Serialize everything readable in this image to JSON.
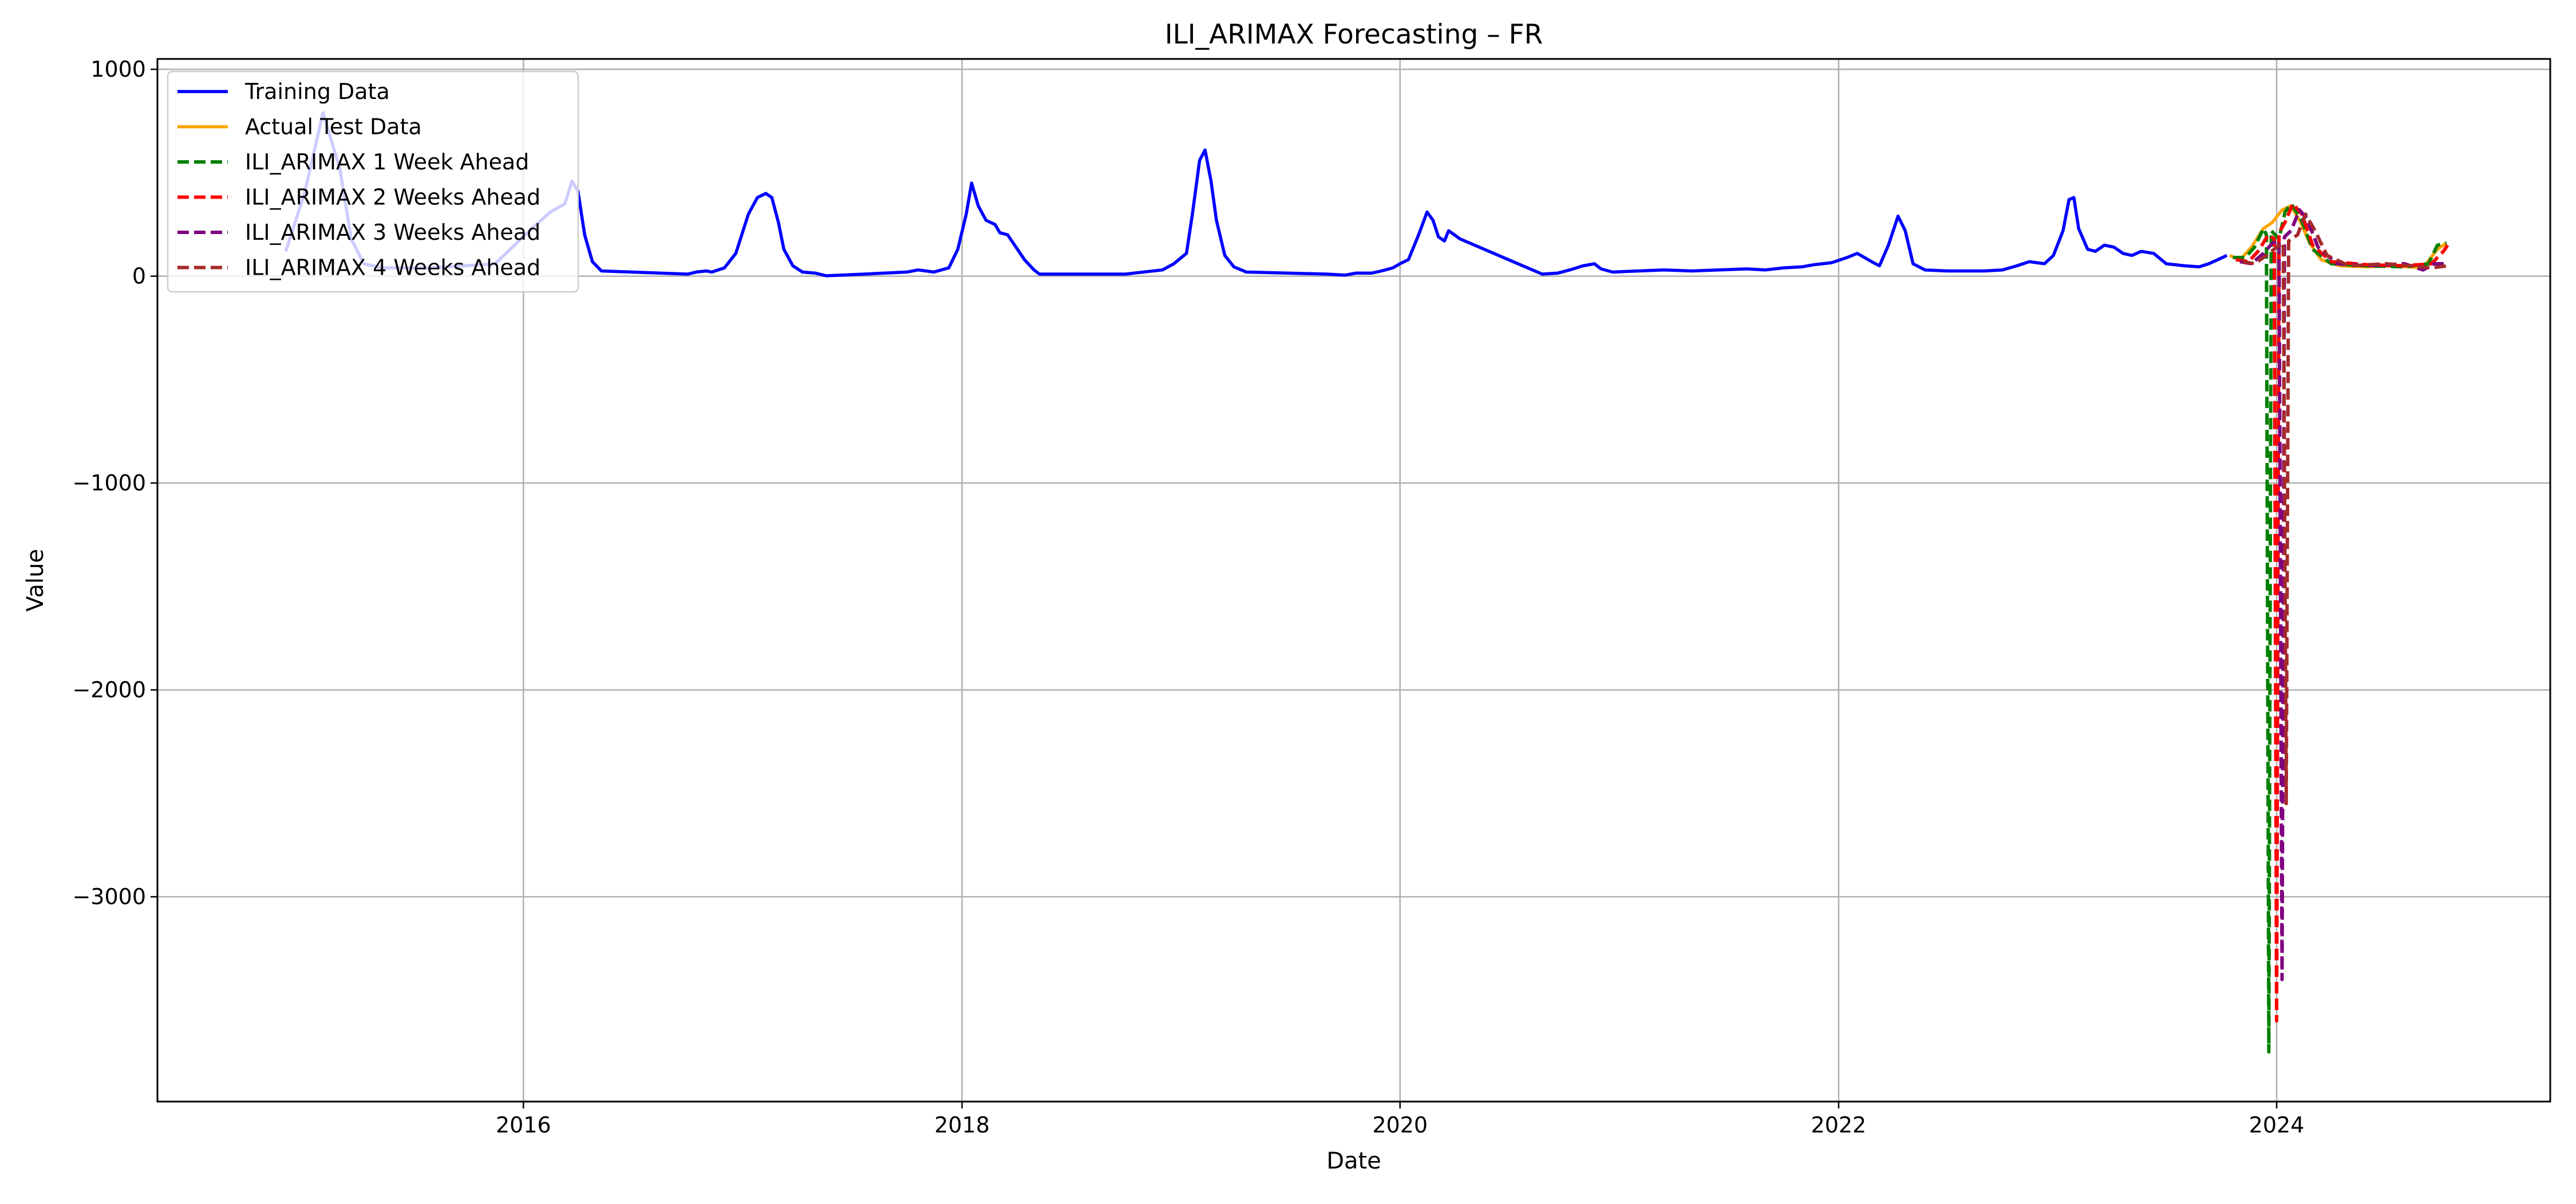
{
  "chart_data": {
    "type": "line",
    "title": "ILI_ARIMAX Forecasting – FR",
    "xlabel": "Date",
    "ylabel": "Value",
    "xlim": [
      "2014-05-01",
      "2025-04-01"
    ],
    "ylim": [
      -3990,
      1050
    ],
    "x_ticks": [
      {
        "value": "2016-01-01",
        "label": "2016"
      },
      {
        "value": "2018-01-01",
        "label": "2018"
      },
      {
        "value": "2020-01-01",
        "label": "2020"
      },
      {
        "value": "2022-01-01",
        "label": "2022"
      },
      {
        "value": "2024-01-01",
        "label": "2024"
      }
    ],
    "y_ticks": [
      {
        "value": 1000,
        "label": "1000"
      },
      {
        "value": 0,
        "label": "0"
      },
      {
        "value": -1000,
        "label": "−1000"
      },
      {
        "value": -2000,
        "label": "−2000"
      },
      {
        "value": -3000,
        "label": "−3000"
      }
    ],
    "grid": true,
    "legend_position": "top-left",
    "series": [
      {
        "name": "Training Data",
        "color": "#0000ff",
        "dash": "solid",
        "points": [
          [
            "2014-12-01",
            120
          ],
          [
            "2015-01-01",
            400
          ],
          [
            "2015-02-01",
            790
          ],
          [
            "2015-03-01",
            520
          ],
          [
            "2015-03-20",
            180
          ],
          [
            "2015-04-10",
            60
          ],
          [
            "2015-05-10",
            40
          ],
          [
            "2015-08-01",
            40
          ],
          [
            "2015-11-15",
            60
          ],
          [
            "2016-01-15",
            230
          ],
          [
            "2016-02-15",
            310
          ],
          [
            "2016-03-10",
            350
          ],
          [
            "2016-03-22",
            460
          ],
          [
            "2016-04-01",
            410
          ],
          [
            "2016-04-12",
            200
          ],
          [
            "2016-04-25",
            70
          ],
          [
            "2016-05-10",
            25
          ],
          [
            "2016-10-01",
            10
          ],
          [
            "2016-10-15",
            20
          ],
          [
            "2016-11-01",
            25
          ],
          [
            "2016-11-10",
            20
          ],
          [
            "2016-12-01",
            40
          ],
          [
            "2016-12-20",
            110
          ],
          [
            "2017-01-10",
            300
          ],
          [
            "2017-01-25",
            380
          ],
          [
            "2017-02-08",
            400
          ],
          [
            "2017-02-18",
            380
          ],
          [
            "2017-03-01",
            260
          ],
          [
            "2017-03-10",
            130
          ],
          [
            "2017-03-25",
            50
          ],
          [
            "2017-04-10",
            20
          ],
          [
            "2017-05-01",
            15
          ],
          [
            "2017-05-20",
            2
          ],
          [
            "2017-06-15",
            5
          ],
          [
            "2017-10-01",
            20
          ],
          [
            "2017-10-20",
            30
          ],
          [
            "2017-11-15",
            20
          ],
          [
            "2017-12-10",
            40
          ],
          [
            "2017-12-25",
            130
          ],
          [
            "2018-01-08",
            300
          ],
          [
            "2018-01-17",
            450
          ],
          [
            "2018-01-28",
            340
          ],
          [
            "2018-02-10",
            270
          ],
          [
            "2018-02-25",
            250
          ],
          [
            "2018-03-05",
            210
          ],
          [
            "2018-03-18",
            200
          ],
          [
            "2018-04-01",
            140
          ],
          [
            "2018-04-15",
            80
          ],
          [
            "2018-05-01",
            30
          ],
          [
            "2018-05-10",
            10
          ],
          [
            "2018-10-01",
            10
          ],
          [
            "2018-10-15",
            15
          ],
          [
            "2018-12-01",
            30
          ],
          [
            "2018-12-20",
            60
          ],
          [
            "2019-01-10",
            110
          ],
          [
            "2019-01-20",
            300
          ],
          [
            "2019-02-01",
            560
          ],
          [
            "2019-02-10",
            610
          ],
          [
            "2019-02-20",
            460
          ],
          [
            "2019-03-01",
            270
          ],
          [
            "2019-03-15",
            100
          ],
          [
            "2019-03-30",
            45
          ],
          [
            "2019-04-20",
            20
          ],
          [
            "2019-09-01",
            10
          ],
          [
            "2019-10-01",
            5
          ],
          [
            "2019-10-20",
            15
          ],
          [
            "2019-11-15",
            15
          ],
          [
            "2019-12-01",
            25
          ],
          [
            "2019-12-20",
            40
          ],
          [
            "2020-01-01",
            60
          ],
          [
            "2020-01-15",
            80
          ],
          [
            "2020-02-01",
            200
          ],
          [
            "2020-02-15",
            310
          ],
          [
            "2020-02-25",
            270
          ],
          [
            "2020-03-05",
            190
          ],
          [
            "2020-03-15",
            170
          ],
          [
            "2020-03-22",
            220
          ],
          [
            "2020-04-10",
            180
          ],
          [
            "2020-08-25",
            10
          ],
          [
            "2020-09-20",
            15
          ],
          [
            "2020-10-10",
            30
          ],
          [
            "2020-11-01",
            50
          ],
          [
            "2020-11-20",
            60
          ],
          [
            "2020-12-01",
            35
          ],
          [
            "2020-12-20",
            20
          ],
          [
            "2021-02-01",
            25
          ],
          [
            "2021-03-15",
            30
          ],
          [
            "2021-05-01",
            25
          ],
          [
            "2021-08-01",
            35
          ],
          [
            "2021-09-01",
            30
          ],
          [
            "2021-10-01",
            40
          ],
          [
            "2021-11-01",
            45
          ],
          [
            "2021-11-20",
            55
          ],
          [
            "2021-12-20",
            65
          ],
          [
            "2022-01-15",
            90
          ],
          [
            "2022-02-01",
            110
          ],
          [
            "2022-02-25",
            70
          ],
          [
            "2022-03-10",
            50
          ],
          [
            "2022-03-25",
            150
          ],
          [
            "2022-04-10",
            290
          ],
          [
            "2022-04-22",
            220
          ],
          [
            "2022-05-05",
            60
          ],
          [
            "2022-05-25",
            30
          ],
          [
            "2022-07-01",
            25
          ],
          [
            "2022-09-01",
            25
          ],
          [
            "2022-10-01",
            30
          ],
          [
            "2022-10-25",
            50
          ],
          [
            "2022-11-15",
            70
          ],
          [
            "2022-12-10",
            60
          ],
          [
            "2022-12-25",
            100
          ],
          [
            "2023-01-10",
            220
          ],
          [
            "2023-01-20",
            370
          ],
          [
            "2023-01-28",
            380
          ],
          [
            "2023-02-05",
            230
          ],
          [
            "2023-02-20",
            130
          ],
          [
            "2023-03-05",
            120
          ],
          [
            "2023-03-20",
            150
          ],
          [
            "2023-04-05",
            140
          ],
          [
            "2023-04-20",
            110
          ],
          [
            "2023-05-05",
            100
          ],
          [
            "2023-05-20",
            120
          ],
          [
            "2023-06-10",
            110
          ],
          [
            "2023-07-01",
            60
          ],
          [
            "2023-08-01",
            50
          ],
          [
            "2023-08-25",
            45
          ],
          [
            "2023-09-10",
            60
          ],
          [
            "2023-09-25",
            80
          ],
          [
            "2023-10-10",
            100
          ]
        ]
      },
      {
        "name": "Actual Test Data",
        "color": "#ffa500",
        "dash": "solid",
        "points": [
          [
            "2023-10-15",
            100
          ],
          [
            "2023-11-01",
            80
          ],
          [
            "2023-11-20",
            140
          ],
          [
            "2023-12-10",
            230
          ],
          [
            "2023-12-25",
            260
          ],
          [
            "2024-01-10",
            320
          ],
          [
            "2024-01-25",
            340
          ],
          [
            "2024-02-10",
            260
          ],
          [
            "2024-02-25",
            160
          ],
          [
            "2024-03-15",
            80
          ],
          [
            "2024-04-15",
            50
          ],
          [
            "2024-06-01",
            45
          ],
          [
            "2024-07-15",
            50
          ],
          [
            "2024-09-01",
            40
          ],
          [
            "2024-09-25",
            130
          ],
          [
            "2024-10-10",
            160
          ]
        ]
      },
      {
        "name": "ILI_ARIMAX 1 Week Ahead",
        "color": "#008000",
        "dash": "dashed",
        "points": [
          [
            "2023-10-20",
            90
          ],
          [
            "2023-11-10",
            90
          ],
          [
            "2023-11-25",
            140
          ],
          [
            "2023-12-10",
            230
          ],
          [
            "2023-12-15",
            200
          ],
          [
            "2023-12-19",
            -3750
          ],
          [
            "2023-12-23",
            220
          ],
          [
            "2024-01-05",
            180
          ],
          [
            "2024-01-15",
            310
          ],
          [
            "2024-01-25",
            350
          ],
          [
            "2024-02-10",
            280
          ],
          [
            "2024-03-01",
            130
          ],
          [
            "2024-04-01",
            60
          ],
          [
            "2024-06-01",
            50
          ],
          [
            "2024-08-01",
            45
          ],
          [
            "2024-09-10",
            60
          ],
          [
            "2024-09-25",
            150
          ],
          [
            "2024-10-10",
            160
          ]
        ]
      },
      {
        "name": "ILI_ARIMAX 2 Weeks Ahead",
        "color": "#ff0000",
        "dash": "dashed",
        "points": [
          [
            "2023-10-25",
            80
          ],
          [
            "2023-11-15",
            70
          ],
          [
            "2023-12-01",
            120
          ],
          [
            "2023-12-18",
            200
          ],
          [
            "2023-12-28",
            180
          ],
          [
            "2024-01-01",
            -3600
          ],
          [
            "2024-01-05",
            210
          ],
          [
            "2024-01-15",
            260
          ],
          [
            "2024-01-28",
            350
          ],
          [
            "2024-02-12",
            300
          ],
          [
            "2024-03-01",
            150
          ],
          [
            "2024-04-01",
            70
          ],
          [
            "2024-06-01",
            55
          ],
          [
            "2024-08-01",
            50
          ],
          [
            "2024-09-15",
            60
          ],
          [
            "2024-10-05",
            120
          ],
          [
            "2024-10-12",
            150
          ]
        ]
      },
      {
        "name": "ILI_ARIMAX 3 Weeks Ahead",
        "color": "#800080",
        "dash": "dashed",
        "points": [
          [
            "2023-11-01",
            70
          ],
          [
            "2023-11-20",
            60
          ],
          [
            "2023-12-10",
            110
          ],
          [
            "2023-12-25",
            160
          ],
          [
            "2024-01-05",
            170
          ],
          [
            "2024-01-10",
            -3400
          ],
          [
            "2024-01-14",
            190
          ],
          [
            "2024-01-25",
            220
          ],
          [
            "2024-02-08",
            320
          ],
          [
            "2024-02-20",
            280
          ],
          [
            "2024-03-10",
            140
          ],
          [
            "2024-04-10",
            60
          ],
          [
            "2024-06-01",
            50
          ],
          [
            "2024-08-01",
            60
          ],
          [
            "2024-09-01",
            30
          ],
          [
            "2024-09-20",
            60
          ],
          [
            "2024-10-12",
            60
          ]
        ]
      },
      {
        "name": "ILI_ARIMAX 4 Weeks Ahead",
        "color": "#a52a2a",
        "dash": "dashed",
        "points": [
          [
            "2023-11-05",
            70
          ],
          [
            "2023-11-25",
            60
          ],
          [
            "2023-12-15",
            100
          ],
          [
            "2024-01-01",
            140
          ],
          [
            "2024-01-12",
            160
          ],
          [
            "2024-01-17",
            -2550
          ],
          [
            "2024-01-21",
            170
          ],
          [
            "2024-02-05",
            200
          ],
          [
            "2024-02-18",
            300
          ],
          [
            "2024-03-05",
            220
          ],
          [
            "2024-03-25",
            100
          ],
          [
            "2024-05-01",
            50
          ],
          [
            "2024-07-01",
            60
          ],
          [
            "2024-08-15",
            50
          ],
          [
            "2024-09-15",
            40
          ],
          [
            "2024-10-12",
            50
          ]
        ]
      }
    ]
  }
}
